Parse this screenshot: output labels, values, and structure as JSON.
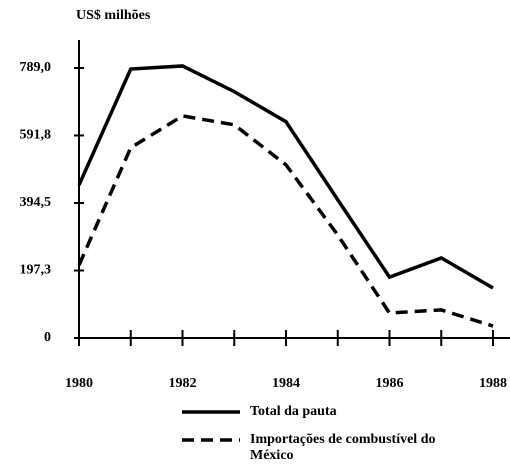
{
  "chart_data": {
    "type": "line",
    "y_unit": "US$ milhões",
    "x": [
      1980,
      1981,
      1982,
      1983,
      1984,
      1985,
      1986,
      1987,
      1988
    ],
    "series": [
      {
        "name": "Total da pauta",
        "color": "#000000",
        "dash": "solid",
        "values": [
          447,
          786,
          795,
          720,
          632,
          404,
          178,
          234,
          146
        ]
      },
      {
        "name": "Importações de combustível do México",
        "color": "#000000",
        "dash": "dashed",
        "values": [
          213,
          556,
          649,
          623,
          506,
          301,
          73,
          82,
          35
        ]
      }
    ],
    "xlim": [
      1980,
      1988
    ],
    "xticks": [
      1980,
      1982,
      1984,
      1986,
      1988
    ],
    "xminor_ticks": [
      1981,
      1983,
      1985,
      1987
    ],
    "ylim": [
      0,
      789.0
    ],
    "yticks": [
      0,
      {
        "value": 197.3,
        "label": "197,3"
      },
      {
        "value": 394.5,
        "label": "394,5"
      },
      {
        "value": 591.8,
        "label": "591,8"
      },
      {
        "value": 789.0,
        "label": "789,0"
      }
    ],
    "grid": false
  }
}
